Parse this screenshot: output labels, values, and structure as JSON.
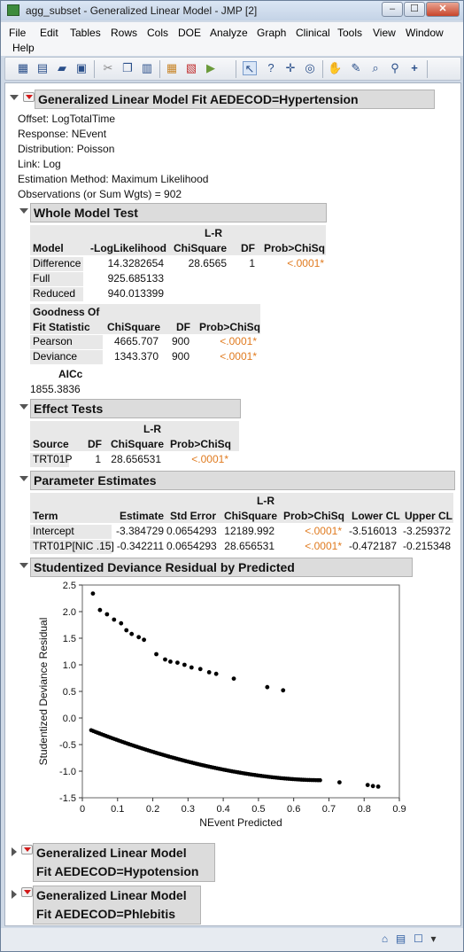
{
  "window": {
    "title": "agg_subset - Generalized Linear Model - JMP [2]",
    "controls": {
      "minimize": "–",
      "maximize": "☐",
      "close": "✕"
    }
  },
  "menu": [
    "File",
    "Edit",
    "Tables",
    "Rows",
    "Cols",
    "DOE",
    "Analyze",
    "Graph",
    "Clinical",
    "Tools",
    "View",
    "Window",
    "Help"
  ],
  "toolbar": {
    "icons": [
      "new-data-table-icon",
      "new-script-icon",
      "open-icon",
      "save-icon",
      "cut-icon",
      "copy-icon",
      "paste-icon",
      "data-grid-icon",
      "pdf-icon",
      "run-icon",
      "arrow-tool-icon",
      "help-tool-icon",
      "crosshair-tool-icon",
      "lasso-tool-icon",
      "hand-tool-icon",
      "brush-tool-icon",
      "magnifier-icon",
      "zoom-icon",
      "plus-icon"
    ]
  },
  "report": {
    "main_title": "Generalized Linear Model Fit AEDECOD=Hypertension",
    "info": [
      "Offset: LogTotalTime",
      "Response: NEvent",
      "Distribution: Poisson",
      "Link: Log",
      "Estimation Method: Maximum Likelihood",
      "Observations (or Sum Wgts) = 902"
    ],
    "whole_model": {
      "title": "Whole Model Test",
      "lr_label": "L-R",
      "headers": [
        "Model",
        "-LogLikelihood",
        "ChiSquare",
        "DF",
        "Prob>ChiSq"
      ],
      "rows": [
        {
          "model": "Difference",
          "loglik": "14.3282654",
          "chisq": "28.6565",
          "df": "1",
          "prob": "<.0001*"
        },
        {
          "model": "Full",
          "loglik": "925.685133",
          "chisq": "",
          "df": "",
          "prob": ""
        },
        {
          "model": "Reduced",
          "loglik": "940.013399",
          "chisq": "",
          "df": "",
          "prob": ""
        }
      ]
    },
    "goodness_of_fit": {
      "header1": "Goodness Of",
      "header2": "Fit Statistic",
      "headers": [
        "ChiSquare",
        "DF",
        "Prob>ChiSq"
      ],
      "rows": [
        {
          "stat": "Pearson",
          "chisq": "4665.707",
          "df": "900",
          "prob": "<.0001*"
        },
        {
          "stat": "Deviance",
          "chisq": "1343.370",
          "df": "900",
          "prob": "<.0001*"
        }
      ]
    },
    "aicc": {
      "label": "AICc",
      "value": "1855.3836"
    },
    "effect_tests": {
      "title": "Effect Tests",
      "lr_label": "L-R",
      "headers": [
        "Source",
        "DF",
        "ChiSquare",
        "Prob>ChiSq"
      ],
      "rows": [
        {
          "source": "TRT01P",
          "df": "1",
          "chisq": "28.656531",
          "prob": "<.0001*"
        }
      ]
    },
    "parameter_estimates": {
      "title": "Parameter Estimates",
      "lr_label": "L-R",
      "headers": [
        "Term",
        "Estimate",
        "Std Error",
        "ChiSquare",
        "Prob>ChiSq",
        "Lower CL",
        "Upper CL"
      ],
      "rows": [
        {
          "term": "Intercept",
          "estimate": "-3.384729",
          "se": "0.0654293",
          "chisq": "12189.992",
          "prob": "<.0001*",
          "lower": "-3.516013",
          "upper": "-3.259372"
        },
        {
          "term": "TRT01P[NIC .15]",
          "estimate": "-0.342211",
          "se": "0.0654293",
          "chisq": "28.656531",
          "prob": "<.0001*",
          "lower": "-0.472187",
          "upper": "-0.215348"
        }
      ]
    },
    "residual_plot": {
      "title": "Studentized Deviance Residual by Predicted"
    },
    "collapsed": [
      {
        "line1": "Generalized Linear Model",
        "line2": "Fit AEDECOD=Hypotension"
      },
      {
        "line1": "Generalized Linear Model",
        "line2": "Fit AEDECOD=Phlebitis"
      }
    ]
  },
  "chart_data": {
    "type": "scatter",
    "title": "",
    "xlabel": "NEvent Predicted",
    "ylabel": "Studentized Deviance Residual",
    "xlim": [
      0,
      0.9
    ],
    "ylim": [
      -1.5,
      2.5
    ],
    "xticks": [
      "0",
      "0.1",
      "0.2",
      "0.3",
      "0.4",
      "0.5",
      "0.6",
      "0.7",
      "0.8",
      "0.9"
    ],
    "yticks": [
      "2.5",
      "2.0",
      "1.5",
      "1.0",
      "0.5",
      "0.0",
      "-0.5",
      "-1.0",
      "-1.5"
    ],
    "upper_points": [
      [
        0.03,
        2.34
      ],
      [
        0.05,
        2.03
      ],
      [
        0.07,
        1.95
      ],
      [
        0.09,
        1.85
      ],
      [
        0.11,
        1.78
      ],
      [
        0.125,
        1.65
      ],
      [
        0.14,
        1.58
      ],
      [
        0.16,
        1.52
      ],
      [
        0.175,
        1.47
      ],
      [
        0.21,
        1.2
      ],
      [
        0.235,
        1.1
      ],
      [
        0.25,
        1.06
      ],
      [
        0.27,
        1.04
      ],
      [
        0.29,
        1.0
      ],
      [
        0.31,
        0.95
      ],
      [
        0.335,
        0.92
      ],
      [
        0.36,
        0.86
      ],
      [
        0.38,
        0.83
      ],
      [
        0.43,
        0.74
      ],
      [
        0.525,
        0.58
      ],
      [
        0.57,
        0.52
      ]
    ],
    "lower_curve": {
      "x_start": 0.025,
      "x_end": 0.675,
      "y_start": -0.23,
      "y_end": -1.17
    },
    "lower_isolated": [
      [
        0.73,
        -1.21
      ],
      [
        0.81,
        -1.26
      ],
      [
        0.825,
        -1.28
      ],
      [
        0.84,
        -1.29
      ]
    ]
  }
}
